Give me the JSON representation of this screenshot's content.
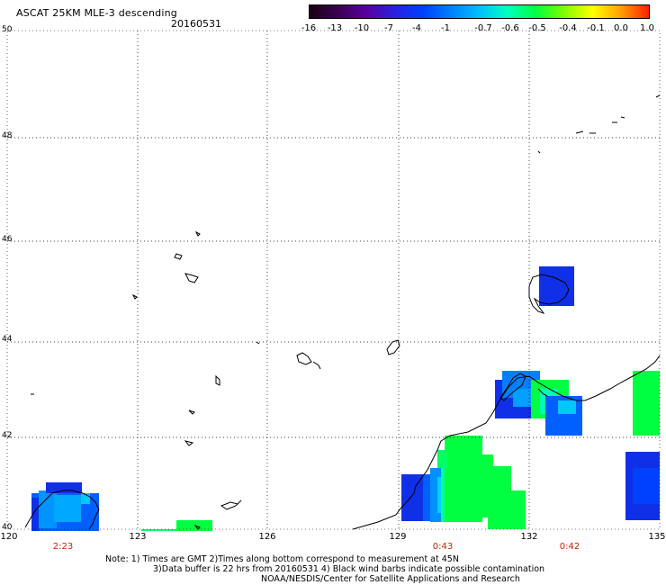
{
  "header": {
    "title": "ASCAT 25KM MLE-3 descending",
    "date": "20160531"
  },
  "colorbar": {
    "labels": [
      "-16",
      "-13",
      "-10",
      "-7",
      "-4",
      "-1",
      "-0.7",
      "-0.6",
      "-0.5",
      "-0.4",
      "-0.1",
      "0.0",
      "1.0"
    ],
    "colors": [
      "#1a0014",
      "#3a0050",
      "#5a00a0",
      "#2a20e0",
      "#0040ff",
      "#0080ff",
      "#00c0ff",
      "#00ffc0",
      "#00ff40",
      "#80ff00",
      "#ffff00",
      "#ffa000",
      "#ff2000"
    ]
  },
  "axes": {
    "lat_labels": [
      "50",
      "48",
      "46",
      "44",
      "42",
      "40"
    ],
    "lon_labels": [
      "120",
      "123",
      "126",
      "129",
      "132",
      "135"
    ],
    "pass_times": [
      "2:23",
      "0:43",
      "0:42"
    ]
  },
  "notes": {
    "line1": "Note: 1) Times are GMT 2)Times along bottom correspond to measurement at 45N",
    "line2": "3)Data buffer is 22 hrs from 20160531 4) Black wind barbs indicate possible contamination",
    "line3": "NOAA/NESDIS/Center for Satellite Applications and Research"
  },
  "style": {
    "coast_color": "#000000",
    "grid_color": "#000000"
  }
}
